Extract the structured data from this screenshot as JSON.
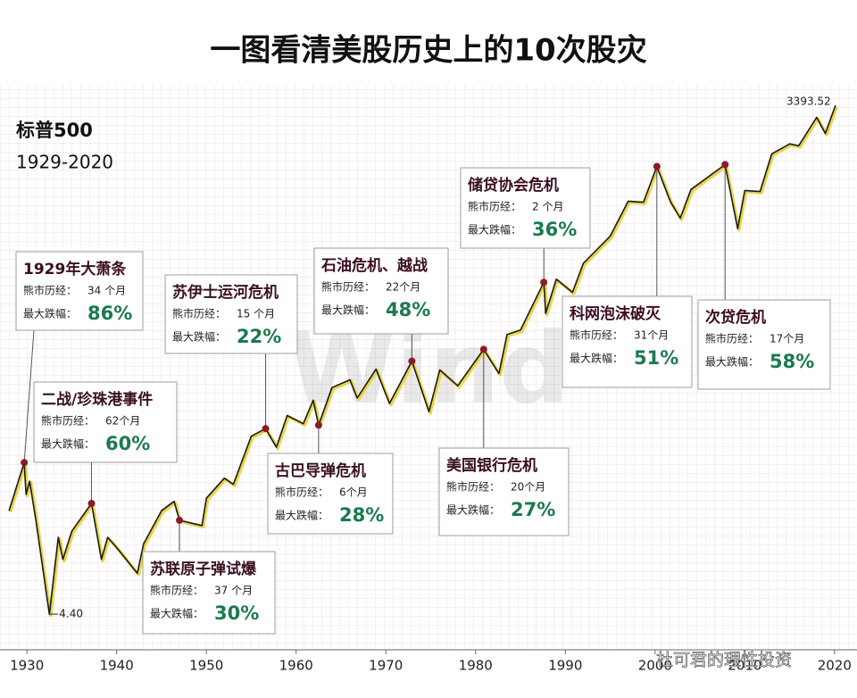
{
  "chart_data": {
    "type": "line",
    "title": "一图看清美股历史上的10次股灾",
    "subtitle": "标普500",
    "period": "1929-2020",
    "log_scale": true,
    "x": [
      1928.0,
      1929.7,
      1929.9,
      1930.3,
      1931.0,
      1932.5,
      1933.5,
      1934.0,
      1935.0,
      1937.2,
      1938.3,
      1939.0,
      1940.0,
      1942.3,
      1943.0,
      1945.0,
      1946.4,
      1947.0,
      1949.5,
      1950.0,
      1952.0,
      1953.0,
      1955.0,
      1956.6,
      1957.8,
      1959.0,
      1960.8,
      1961.9,
      1962.5,
      1964.0,
      1966.0,
      1966.8,
      1968.9,
      1970.4,
      1972.9,
      1974.8,
      1976.0,
      1978.0,
      1980.9,
      1982.6,
      1983.5,
      1985.0,
      1987.6,
      1987.8,
      1989.0,
      1990.8,
      1992.0,
      1995.0,
      1997.0,
      1998.7,
      2000.2,
      2001.7,
      2002.8,
      2004.0,
      2007.8,
      2009.2,
      2010.0,
      2011.7,
      2013.0,
      2015.0,
      2016.0,
      2018.0,
      2018.97,
      2020.1
    ],
    "series": [
      {
        "color": "#1a1a1a",
        "values": [
          17,
          31.9,
          21,
          25,
          15,
          4.4,
          12,
          9,
          13,
          18.7,
          9,
          12,
          10.5,
          7.5,
          11,
          17,
          19.2,
          15,
          14,
          20,
          26,
          24,
          45,
          49.7,
          39,
          59,
          53,
          72,
          52,
          85,
          94,
          74,
          108,
          69,
          120,
          62,
          107,
          87,
          140,
          102,
          170,
          180,
          336,
          224,
          350,
          295,
          430,
          615,
          970,
          957,
          1527,
          965,
          777,
          1130,
          1565,
          677,
          1115,
          1100,
          1800,
          2050,
          2000,
          2900,
          2351,
          3393.52
        ]
      }
    ],
    "xlim": [
      1927,
      2022.5
    ],
    "ylim": [
      2.86,
      4438
    ],
    "xticks": [
      1930,
      1940,
      1950,
      1960,
      1970,
      1980,
      1990,
      2000,
      2010,
      2020
    ],
    "peak": {
      "x": 2020.1,
      "value": 3393.52
    },
    "low": {
      "x": 1932.5,
      "value": {
        "value": 4.4,
        "label": "4.40"
      }
    },
    "annotations": [
      {
        "title": "1929年大萧条",
        "duration_label": "熊市历经：",
        "duration": "34 个月",
        "drop_label": "最大跌幅：",
        "drop": "86%",
        "x": 1929.7,
        "y": 31.9
      },
      {
        "title": "二战/珍珠港事件",
        "duration_label": "熊市历经：",
        "duration": "62个月",
        "drop_label": "最大跌幅：",
        "drop": "60%",
        "x": 1937.2,
        "y": 18.7
      },
      {
        "title": "苏联原子弹试爆",
        "duration_label": "熊市历经：",
        "duration": "37 个月",
        "drop_label": "最大跌幅：",
        "drop": "30%",
        "x": 1947.0,
        "y": 15
      },
      {
        "title": "苏伊士运河危机",
        "duration_label": "熊市历经：",
        "duration": "15 个月",
        "drop_label": "最大跌幅：",
        "drop": "22%",
        "x": 1956.6,
        "y": 49.7
      },
      {
        "title": "古巴导弹危机",
        "duration_label": "熊市历经：",
        "duration": "6个月",
        "drop_label": "最大跌幅：",
        "drop": "28%",
        "x": 1962.5,
        "y": 52
      },
      {
        "title": "石油危机、越战",
        "duration_label": "熊市历经：",
        "duration": "22个月",
        "drop_label": "最大跌幅：",
        "drop": "48%",
        "x": 1972.9,
        "y": 120
      },
      {
        "title": "美国银行危机",
        "duration_label": "熊市历经：",
        "duration": "20个月",
        "drop_label": "最大跌幅：",
        "drop": "27%",
        "x": 1980.9,
        "y": 140
      },
      {
        "title": "储贷协会危机",
        "duration_label": "熊市历经：",
        "duration": "2 个月",
        "drop_label": "最大跌幅：",
        "drop": "36%",
        "x": 1987.6,
        "y": 336
      },
      {
        "title": "科网泡沫破灭",
        "duration_label": "熊市历经：",
        "duration": "31个月",
        "drop_label": "最大跌幅：",
        "drop": "51%",
        "x": 2000.2,
        "y": 1527
      },
      {
        "title": "次贷危机",
        "duration_label": "熊市历经：",
        "duration": "17个月",
        "drop_label": "最大跌幅：",
        "drop": "58%",
        "x": 2007.8,
        "y": 1565
      }
    ],
    "watermark": "Wind",
    "source": "杜可君的理性投资"
  }
}
